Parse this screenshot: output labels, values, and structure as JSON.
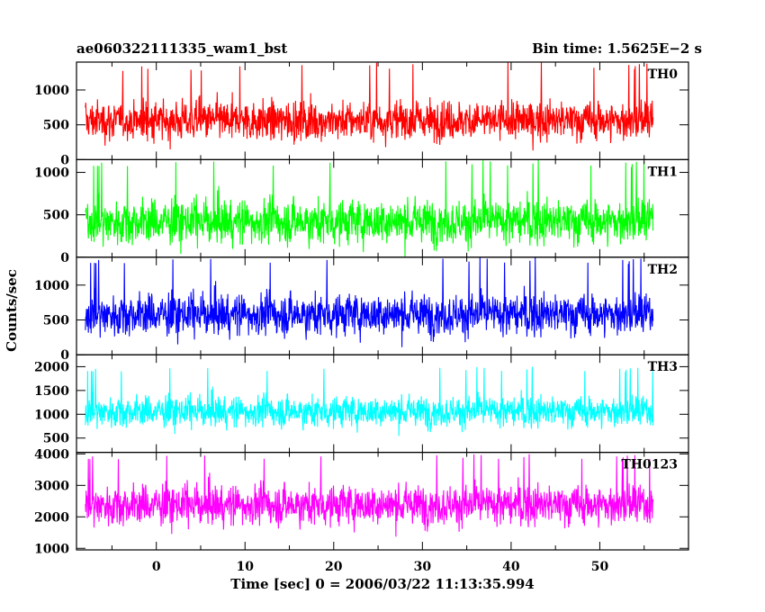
{
  "chart_data": {
    "type": "line",
    "title_left": "ae060322111335_wam1_bst",
    "title_right": "Bin time: 1.5625E−2 s",
    "xlabel": "Time [sec] 0 = 2006/03/22 11:13:35.994",
    "ylabel": "Counts/sec",
    "xlim": [
      -9,
      60
    ],
    "x_ticks": [
      0,
      10,
      20,
      30,
      40,
      50
    ],
    "x_data_range": [
      -8,
      56
    ],
    "grid": false,
    "panels": [
      {
        "name": "TH0",
        "color": "#ff0000",
        "ylim": [
          0,
          1400
        ],
        "y_ticks": [
          0,
          500,
          1000
        ],
        "mean": 560,
        "noise_sd": 200,
        "spike_max": 1400
      },
      {
        "name": "TH1",
        "color": "#00ff00",
        "ylim": [
          0,
          1150
        ],
        "y_ticks": [
          0,
          500,
          1000
        ],
        "mean": 420,
        "noise_sd": 185,
        "spike_max": 1150
      },
      {
        "name": "TH2",
        "color": "#0000ff",
        "ylim": [
          0,
          1400
        ],
        "y_ticks": [
          0,
          500,
          1000
        ],
        "mean": 580,
        "noise_sd": 210,
        "spike_max": 1400
      },
      {
        "name": "TH3",
        "color": "#00ffff",
        "ylim": [
          200,
          2250
        ],
        "y_ticks": [
          500,
          1000,
          1500,
          2000
        ],
        "mean": 1060,
        "noise_sd": 230,
        "spike_max": 2000
      },
      {
        "name": "TH0123",
        "color": "#ff00ff",
        "ylim": [
          950,
          4050
        ],
        "y_ticks": [
          1000,
          2000,
          3000,
          4000
        ],
        "mean": 2380,
        "noise_sd": 450,
        "spike_max": 4000
      }
    ]
  }
}
